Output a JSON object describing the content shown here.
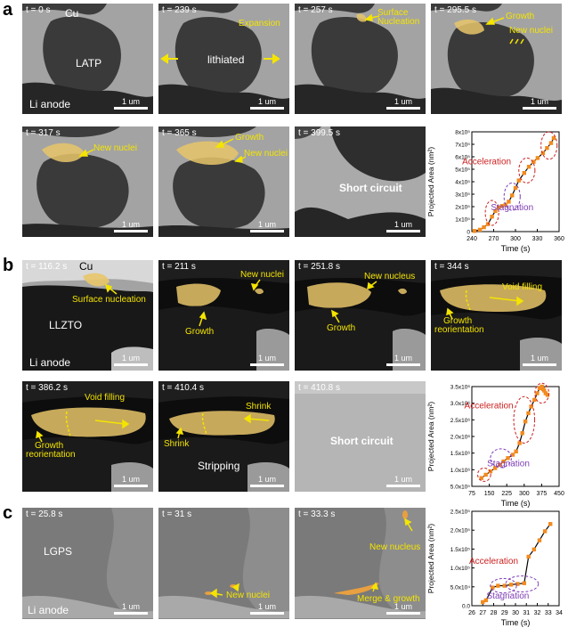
{
  "panel_labels": [
    "a",
    "b",
    "c"
  ],
  "row_a": {
    "frames": [
      {
        "time": "t = 0 s",
        "labels": [
          "Cu",
          "LATP",
          "Li anode"
        ],
        "scale": "1 um"
      },
      {
        "time": "t = 239 s",
        "labels": [
          "lithiated"
        ],
        "annotations": [
          "Expansion"
        ],
        "scale": "1 um"
      },
      {
        "time": "t = 257 s",
        "annotations": [
          "Surface",
          "Nucleation"
        ],
        "scale": "1 um"
      },
      {
        "time": "t = 295.5 s",
        "annotations": [
          "Growth",
          "New nuclei"
        ],
        "scale": "1 um"
      },
      {
        "time": "t = 317 s",
        "annotations": [
          "New nuclei"
        ],
        "scale": "1 um"
      },
      {
        "time": "t = 365 s",
        "annotations": [
          "Growth",
          "New nuclei"
        ],
        "scale": "1 um"
      },
      {
        "time": "t = 399.5 s",
        "labels": [
          "Short circuit"
        ],
        "scale": "1 um"
      }
    ]
  },
  "row_b": {
    "frames": [
      {
        "time": "t = 116.2 s",
        "labels": [
          "Cu",
          "LLZTO",
          "Li anode"
        ],
        "annotations": [
          "Surface nucleation"
        ],
        "scale": "1 um"
      },
      {
        "time": "t = 211 s",
        "annotations": [
          "New nuclei",
          "Growth"
        ],
        "scale": "1 um"
      },
      {
        "time": "t = 251.8 s",
        "annotations": [
          "New nucleus",
          "Growth"
        ],
        "scale": "1 um"
      },
      {
        "time": "t = 344 s",
        "annotations": [
          "Void filling",
          "Growth",
          "reorientation"
        ],
        "scale": "1 um"
      },
      {
        "time": "t = 386.2 s",
        "annotations": [
          "Void filling",
          "Growth",
          "reorientation"
        ],
        "scale": "1 um"
      },
      {
        "time": "t = 410.4 s",
        "labels": [
          "Stripping"
        ],
        "annotations": [
          "Shrink",
          "Shrink"
        ],
        "scale": "1 um"
      },
      {
        "time": "t = 410.8 s",
        "labels": [
          "Short circuit"
        ],
        "scale": "1 um"
      }
    ]
  },
  "row_c": {
    "frames": [
      {
        "time": "t = 25.8 s",
        "labels": [
          "LGPS",
          "Li anode"
        ],
        "scale": "1 um"
      },
      {
        "time": "t = 31 s",
        "annotations": [
          "New nuclei"
        ],
        "scale": "1 um"
      },
      {
        "time": "t = 33.3 s",
        "annotations": [
          "New nucleus",
          "Merge & growth"
        ],
        "scale": "1 um"
      }
    ]
  },
  "colors": {
    "annotation": "#f4e400",
    "lithium": "#e8c66a",
    "point": "#f28a1e",
    "fit": "#000000",
    "acceleration": "#cc1f1f",
    "stagnation": "#7d3cb5"
  },
  "chart_data": [
    {
      "type": "scatter",
      "xlabel": "Time (s)",
      "ylabel": "Projected Area (nm²)",
      "xlim": [
        240,
        370
      ],
      "xticks": [
        "240",
        "270",
        "300",
        "330",
        "360"
      ],
      "ylim": [
        0,
        8
      ],
      "ytick_labels": [
        "0",
        "1x10⁵",
        "2x10⁵",
        "3x10⁵",
        "4x10⁵",
        "5x10⁵",
        "6x10⁵",
        "7x10⁵",
        "8x10⁵"
      ],
      "x": [
        244,
        252,
        258,
        264,
        270,
        275,
        280,
        285,
        290,
        295,
        300,
        305,
        310,
        318,
        325,
        332,
        338,
        346,
        352,
        358,
        362
      ],
      "y": [
        0.05,
        0.15,
        0.35,
        0.6,
        1.2,
        1.65,
        1.95,
        2.05,
        2.15,
        2.4,
        2.9,
        3.5,
        4.1,
        4.7,
        5.2,
        5.6,
        5.9,
        6.3,
        6.7,
        7.1,
        7.5
      ],
      "annotations": [
        "Acceleration",
        "Stagnation"
      ]
    },
    {
      "type": "scatter",
      "xlabel": "Time (s)",
      "ylabel": "Projected Area (nm²)",
      "xlim": [
        75,
        450
      ],
      "xticks": [
        "75",
        "150",
        "225",
        "300",
        "375",
        "450"
      ],
      "ylim": [
        0.5,
        3.5
      ],
      "ytick_labels": [
        "5.0x10⁵",
        "1.0x10⁶",
        "1.5x10⁶",
        "2.0x10⁶",
        "2.5x10⁶",
        "3.0x10⁶",
        "3.5x10⁶"
      ],
      "x": [
        116,
        135,
        155,
        175,
        195,
        211,
        230,
        251,
        265,
        280,
        292,
        305,
        318,
        330,
        344,
        356,
        366,
        376,
        382,
        386,
        392,
        400
      ],
      "y": [
        0.75,
        0.85,
        0.95,
        1.05,
        1.15,
        1.25,
        1.35,
        1.45,
        1.55,
        1.8,
        2.1,
        2.45,
        2.7,
        2.9,
        3.1,
        3.3,
        3.45,
        3.5,
        3.42,
        3.38,
        3.3,
        3.25
      ],
      "annotations": [
        "Acceleration",
        "Stagnation"
      ]
    },
    {
      "type": "scatter",
      "xlabel": "Time (s)",
      "ylabel": "Projected Area (nm²)",
      "xlim": [
        26,
        34
      ],
      "xticks": [
        "26",
        "27",
        "28",
        "29",
        "30",
        "31",
        "32",
        "33",
        "34"
      ],
      "ylim": [
        -0.1,
        2.5
      ],
      "ytick_labels": [
        "0.0",
        "5.0x10⁴",
        "1.0x10⁵",
        "1.5x10⁵",
        "2.0x10⁵",
        "2.5x10⁵"
      ],
      "x": [
        27.0,
        27.3,
        27.9,
        28.4,
        29.0,
        29.6,
        30.2,
        30.8,
        31.2,
        31.7,
        32.2,
        32.7,
        33.2
      ],
      "y": [
        0.0,
        0.05,
        0.4,
        0.45,
        0.45,
        0.48,
        0.5,
        0.52,
        1.25,
        1.45,
        1.7,
        1.95,
        2.15
      ],
      "annotations": [
        "Acceleration",
        "Stagnation"
      ]
    }
  ]
}
